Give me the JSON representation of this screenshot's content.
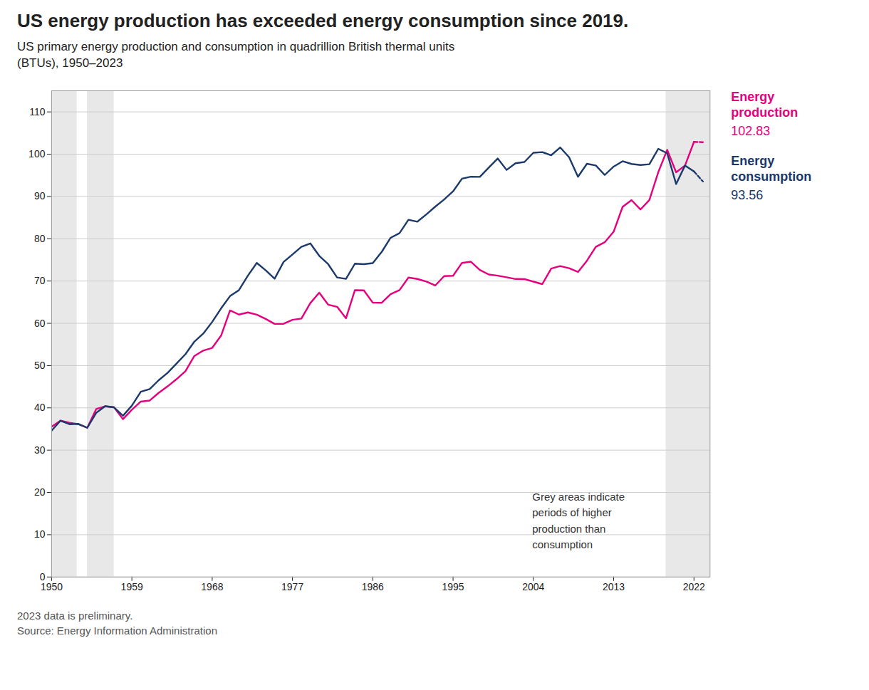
{
  "chart_data": {
    "type": "line",
    "title": "US energy production has exceeded energy consumption since 2019.",
    "subtitle": "US primary energy production and consumption in quadrillion British thermal units\n(BTUs), 1950–2023",
    "annotation": "Grey areas indicate\nperiods of higher\nproduction than\nconsumption",
    "footnote": "2023 data is preliminary.",
    "source": "Source: Energy Information Administration",
    "x": [
      1950,
      1951,
      1952,
      1953,
      1954,
      1955,
      1956,
      1957,
      1958,
      1959,
      1960,
      1961,
      1962,
      1963,
      1964,
      1965,
      1966,
      1967,
      1968,
      1969,
      1970,
      1971,
      1972,
      1973,
      1974,
      1975,
      1976,
      1977,
      1978,
      1979,
      1980,
      1981,
      1982,
      1983,
      1984,
      1985,
      1986,
      1987,
      1988,
      1989,
      1990,
      1991,
      1992,
      1993,
      1994,
      1995,
      1996,
      1997,
      1998,
      1999,
      2000,
      2001,
      2002,
      2003,
      2004,
      2005,
      2006,
      2007,
      2008,
      2009,
      2010,
      2011,
      2012,
      2013,
      2014,
      2015,
      2016,
      2017,
      2018,
      2019,
      2020,
      2021,
      2022,
      2023
    ],
    "series": [
      {
        "name": "Energy\nproduction",
        "color": "#E5007D",
        "values": [
          35.54,
          36.97,
          36.49,
          36.15,
          35.29,
          39.73,
          40.38,
          40.13,
          37.33,
          39.56,
          41.49,
          41.74,
          43.54,
          45.09,
          46.78,
          48.67,
          52.27,
          53.55,
          54.19,
          57.09,
          63.05,
          62.07,
          62.58,
          62.06,
          61.04,
          59.86,
          59.89,
          60.82,
          61.12,
          64.78,
          67.24,
          64.42,
          63.91,
          61.19,
          67.84,
          67.79,
          64.87,
          64.86,
          66.89,
          67.86,
          70.82,
          70.49,
          69.88,
          68.94,
          71.16,
          71.24,
          74.29,
          74.57,
          72.61,
          71.54,
          71.26,
          70.89,
          70.48,
          70.46,
          69.86,
          69.27,
          72.96,
          73.53,
          73.05,
          72.14,
          74.8,
          78.1,
          79.18,
          81.68,
          87.54,
          89.14,
          86.92,
          89.16,
          95.75,
          101.03,
          95.72,
          97.33,
          102.91,
          102.83
        ]
      },
      {
        "name": "Energy\nconsumption",
        "color": "#1B3A6B",
        "values": [
          34.62,
          36.97,
          36.14,
          36.21,
          35.29,
          38.82,
          40.38,
          40.13,
          38.13,
          40.53,
          43.8,
          44.46,
          46.53,
          48.29,
          50.48,
          52.68,
          55.66,
          57.57,
          60.32,
          63.53,
          66.43,
          67.84,
          71.26,
          74.28,
          72.54,
          70.55,
          74.51,
          76.29,
          78.09,
          78.9,
          75.96,
          73.99,
          70.85,
          70.52,
          74.11,
          73.98,
          74.24,
          76.89,
          80.22,
          81.33,
          84.49,
          84.04,
          85.75,
          87.58,
          89.29,
          91.21,
          94.21,
          94.67,
          94.64,
          96.83,
          98.98,
          96.28,
          97.86,
          98.16,
          100.35,
          100.49,
          99.75,
          101.6,
          99.3,
          94.65,
          97.74,
          97.33,
          95.08,
          97.07,
          98.33,
          97.69,
          97.43,
          97.63,
          101.27,
          100.21,
          92.94,
          97.33,
          95.91,
          93.56
        ]
      }
    ],
    "preliminary": {
      "x": [
        2022,
        2023
      ],
      "line_style": "dashed"
    },
    "shading": {
      "color": "#E8E8E8",
      "spans": [
        [
          1950,
          1952.8536585365853
        ],
        [
          1954,
          1957
        ],
        [
          2018.8706624605677,
          2023.8
        ]
      ]
    },
    "xlim": [
      1950,
      2023.8
    ],
    "xticks": [
      1950,
      1959,
      1968,
      1977,
      1986,
      1995,
      2004,
      2013,
      2022
    ],
    "ylim": [
      0,
      115
    ],
    "yticks": [
      0,
      10,
      20,
      30,
      40,
      50,
      60,
      70,
      80,
      90,
      100,
      110
    ],
    "grid": "y"
  }
}
